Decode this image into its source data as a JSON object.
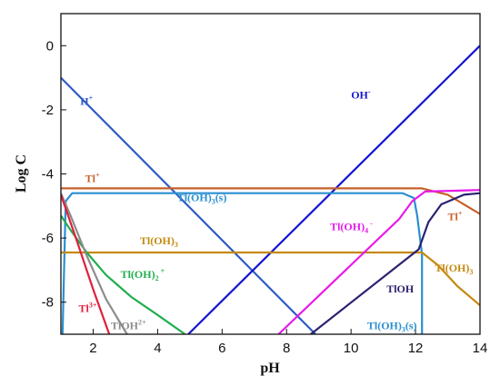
{
  "chart_data": {
    "type": "line",
    "title": "",
    "xlabel": "pH",
    "ylabel": "Log C",
    "xlim": [
      1,
      14
    ],
    "ylim": [
      -9,
      1
    ],
    "xticks": [
      2,
      4,
      6,
      8,
      10,
      12,
      14
    ],
    "yticks": [
      0,
      -2,
      -4,
      -6,
      -8
    ],
    "grid": false,
    "series": [
      {
        "color": "#2e5bc5",
        "x": [
          1,
          8.9
        ],
        "y": [
          -1.0,
          -9.0
        ]
      },
      {
        "color": "#1414d2",
        "x": [
          4.95,
          14
        ],
        "y": [
          -9.0,
          0.0
        ]
      },
      {
        "color": "#c8602a",
        "x": [
          1,
          12.2,
          13.0,
          14
        ],
        "y": [
          -4.45,
          -4.45,
          -4.65,
          -5.25
        ]
      },
      {
        "color": "#2a8fd0",
        "x": [
          1.05,
          1.15,
          1.35,
          11.6,
          11.95,
          12.05,
          12.2,
          12.2
        ],
        "y": [
          -9.0,
          -4.85,
          -4.6,
          -4.6,
          -4.75,
          -5.3,
          -6.5,
          -9.0
        ]
      },
      {
        "color": "#c48a10",
        "x": [
          1,
          12.2,
          12.7,
          13.3,
          14
        ],
        "y": [
          -6.45,
          -6.45,
          -6.85,
          -7.5,
          -8.1
        ]
      },
      {
        "color": "#e81be8",
        "x": [
          7.75,
          11.5,
          11.9,
          12.3,
          14
        ],
        "y": [
          -9.0,
          -5.4,
          -4.85,
          -4.55,
          -4.5
        ]
      },
      {
        "color": "#2a2270",
        "x": [
          8.75,
          12.1,
          12.4,
          12.8,
          13.5,
          14
        ],
        "y": [
          -9.0,
          -6.35,
          -5.5,
          -4.95,
          -4.65,
          -4.6
        ]
      },
      {
        "color": "#1fae4c",
        "x": [
          1,
          1.3,
          1.8,
          2.4,
          3.2,
          4.0,
          4.85
        ],
        "y": [
          -5.3,
          -5.75,
          -6.45,
          -7.15,
          -7.85,
          -8.4,
          -9.0
        ]
      },
      {
        "color": "#8c8c8c",
        "x": [
          1,
          1.3,
          1.8,
          2.4,
          3.05
        ],
        "y": [
          -4.6,
          -5.3,
          -6.55,
          -7.9,
          -9.0
        ]
      },
      {
        "color": "#e0203c",
        "x": [
          1,
          1.5,
          2.0,
          2.5
        ],
        "y": [
          -4.65,
          -6.1,
          -7.6,
          -9.0
        ]
      }
    ],
    "annotations": [
      {
        "id": "h",
        "base": "H",
        "sup": "+",
        "color": "#2e5bc5",
        "x": 1.6,
        "y": -1.85
      },
      {
        "id": "oh",
        "base": "OH",
        "sup": "-",
        "color": "#1414d2",
        "x": 10.0,
        "y": -1.65
      },
      {
        "id": "tl1",
        "base": "Tl",
        "sup": "+",
        "color": "#c8602a",
        "x": 1.75,
        "y": -4.25
      },
      {
        "id": "tl1r",
        "base": "Tl",
        "sup": "+",
        "color": "#c8602a",
        "x": 13.0,
        "y": -5.45
      },
      {
        "id": "tloh3s",
        "base": "Tl(OH)",
        "sub": "3",
        "tail": "(s)",
        "color": "#2a8fd0",
        "x": 4.6,
        "y": -4.85
      },
      {
        "id": "tloh3s-b",
        "base": "Tl(OH)",
        "sub": "3",
        "tail": "(s)",
        "color": "#2a8fd0",
        "x": 10.5,
        "y": -8.85
      },
      {
        "id": "tloh3",
        "base": "Tl(OH)",
        "sub": "3",
        "color": "#c48a10",
        "x": 3.45,
        "y": -6.2
      },
      {
        "id": "tloh3r",
        "base": "Tl(OH)",
        "sub": "3",
        "color": "#c48a10",
        "x": 12.6,
        "y": -7.05
      },
      {
        "id": "tloh4",
        "base": "Tl(OH)",
        "sub": "4",
        "sup": "-",
        "color": "#e81be8",
        "x": 9.35,
        "y": -5.75
      },
      {
        "id": "tloh",
        "base": "TlOH",
        "color": "#2a2270",
        "x": 11.1,
        "y": -7.7
      },
      {
        "id": "tloh2",
        "base": "Tl(OH)",
        "sub": "2",
        "sup": "+",
        "color": "#1fae4c",
        "x": 2.85,
        "y": -7.25
      },
      {
        "id": "tl3",
        "base": "Tl",
        "sup": "3+",
        "color": "#e0203c",
        "x": 1.55,
        "y": -8.3
      },
      {
        "id": "tlohc",
        "base": "TlOH",
        "sup": "2+",
        "color": "#8c8c8c",
        "x": 2.55,
        "y": -8.85
      }
    ]
  }
}
